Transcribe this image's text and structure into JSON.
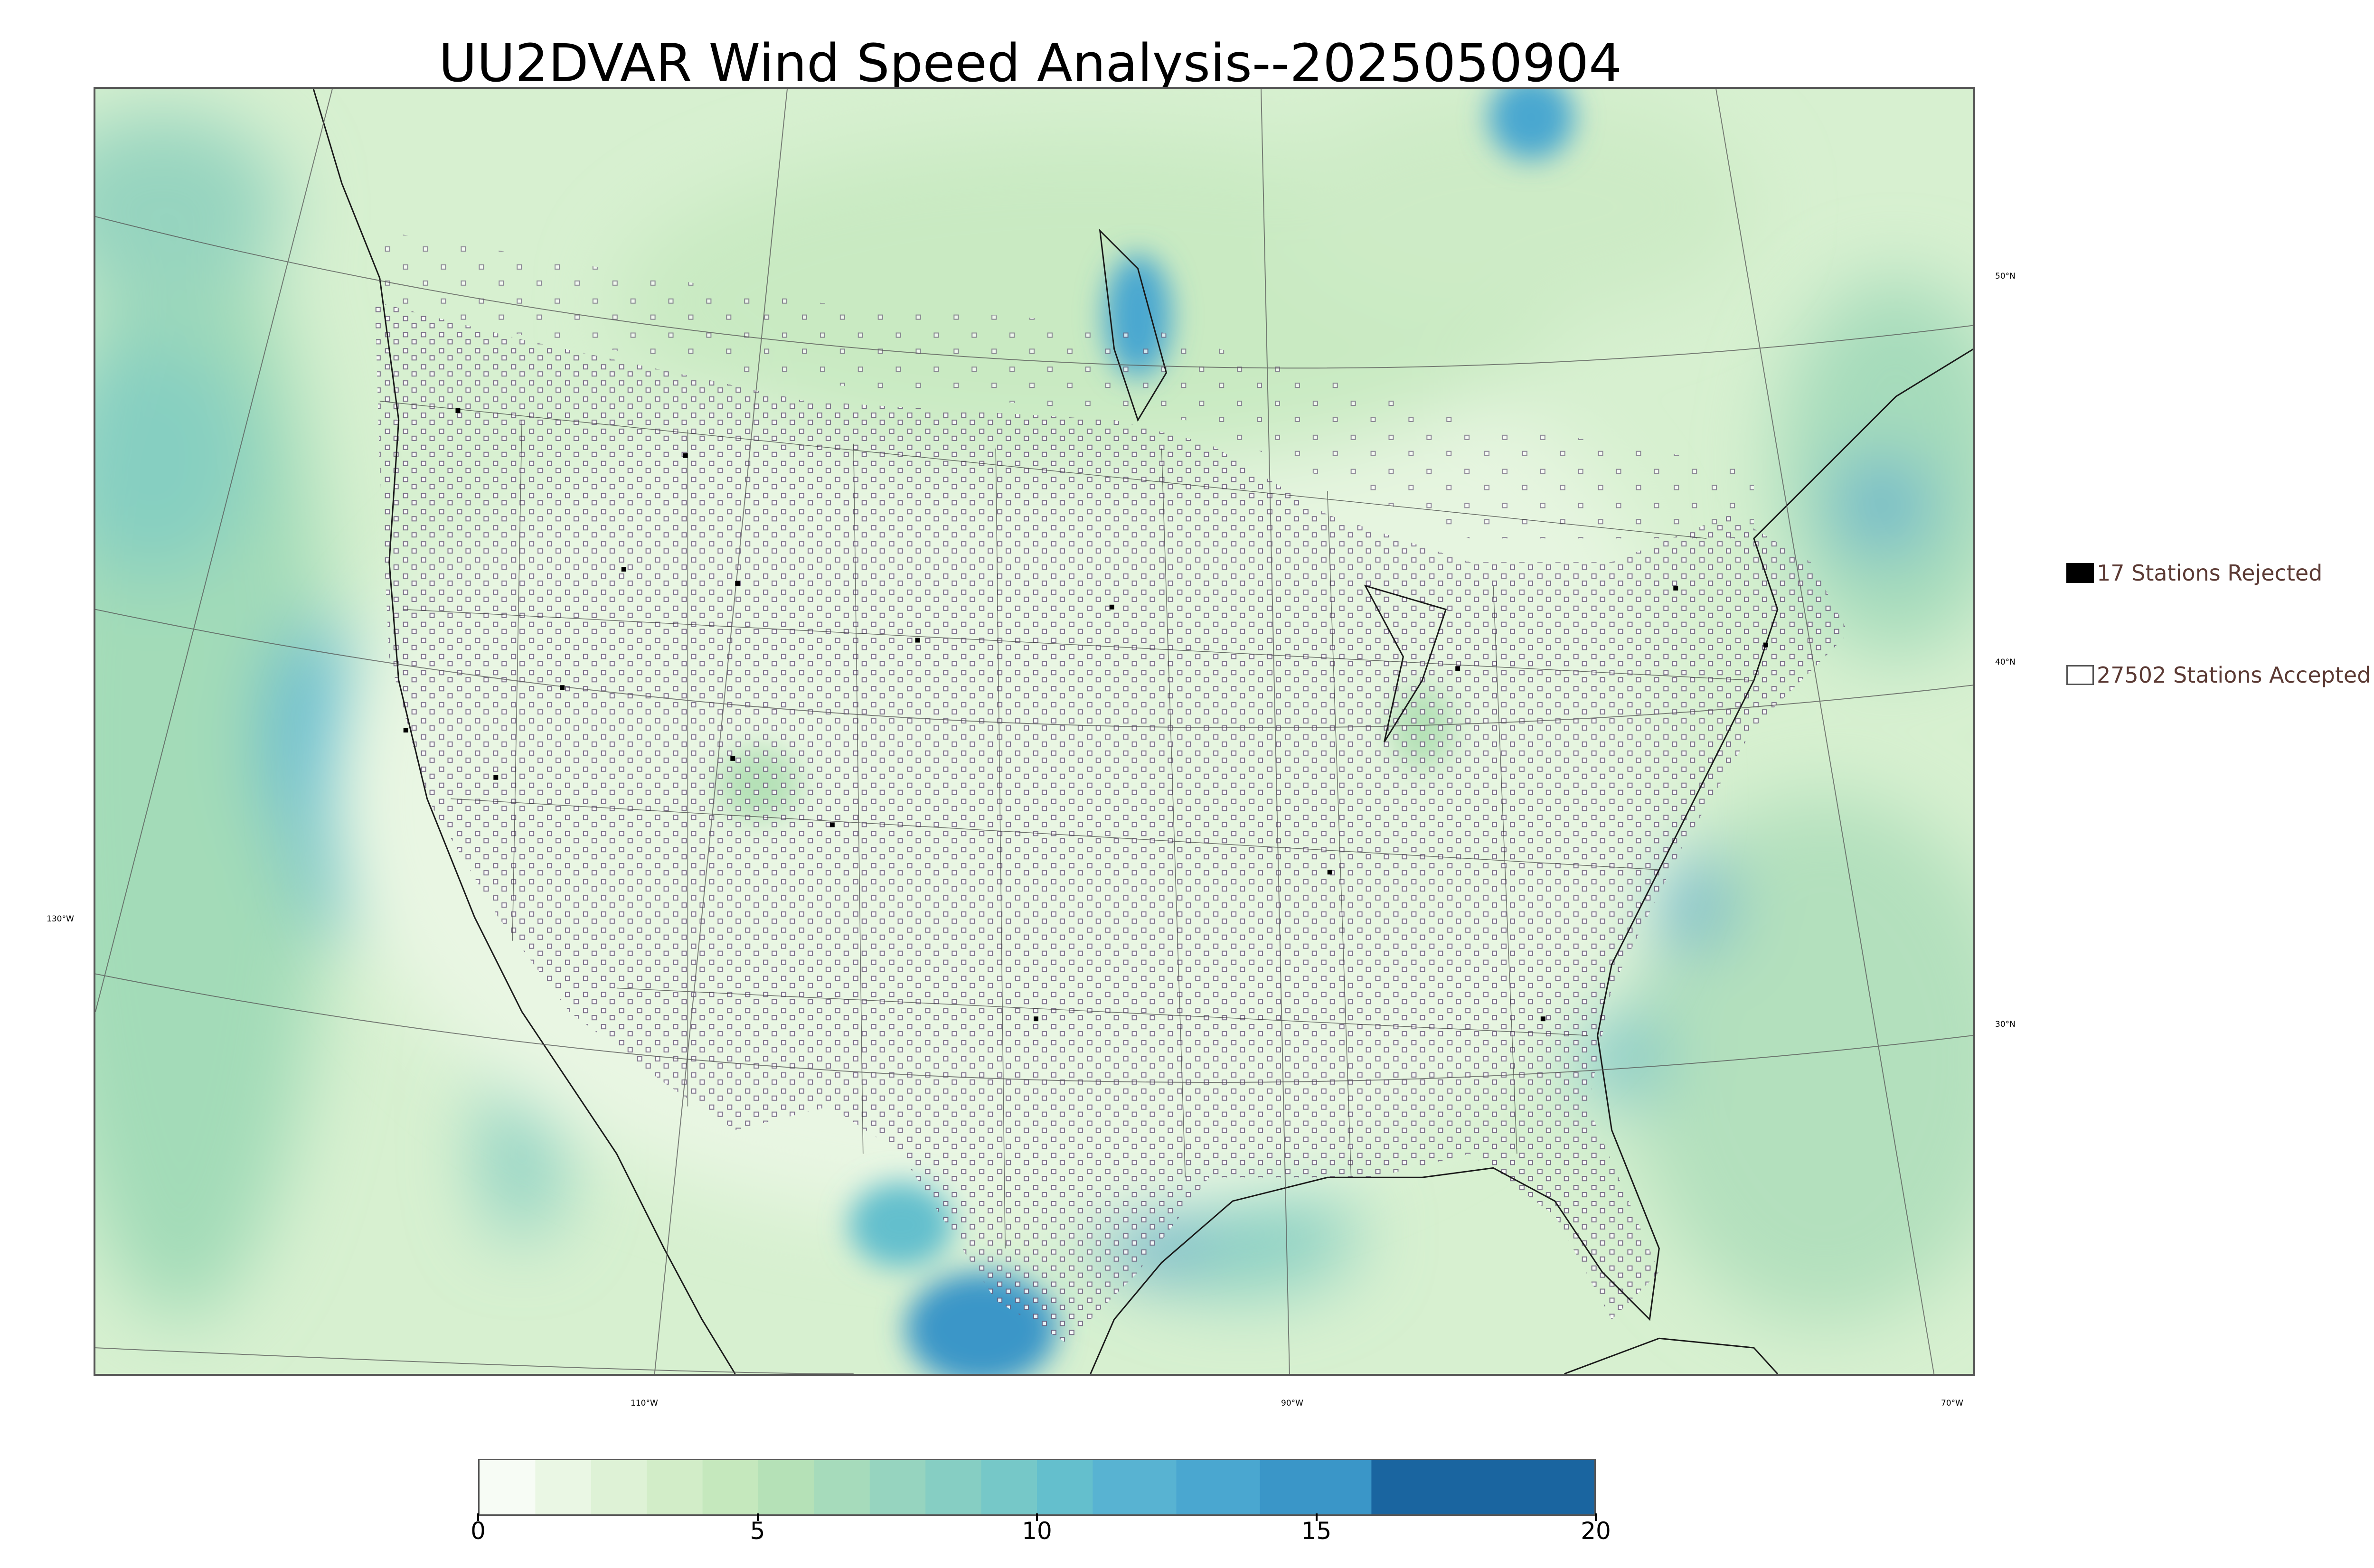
{
  "title": "UU2DVAR Wind Speed Analysis--2025050904",
  "map": {
    "description_colors": {
      "calm": "#f4fbf0",
      "light": "#d3eecb",
      "moderate": "#a8dcb5",
      "strong": "#5cb8d0",
      "very_strong": "#2c8ec0",
      "extreme": "#1663a0"
    },
    "lat_labels": [
      "50°N",
      "40°N",
      "30°N"
    ],
    "lon_labels": [
      "130°W",
      "110°W",
      "90°W",
      "70°W"
    ]
  },
  "legend": {
    "rejected_label": "17 Stations Rejected",
    "accepted_label": "27502 Stations Accepted",
    "rejected_color": "#000000",
    "accepted_color": "#ffffff"
  },
  "colorbar": {
    "ticks": [
      "0",
      "5",
      "10",
      "15",
      "20"
    ],
    "tick_values": [
      0,
      5,
      10,
      15,
      20
    ],
    "range": [
      0,
      20
    ],
    "bins": [
      {
        "from": 0,
        "to": 1,
        "color": "#f7fcf5"
      },
      {
        "from": 1,
        "to": 2,
        "color": "#eaf7e4"
      },
      {
        "from": 2,
        "to": 3,
        "color": "#def2d6"
      },
      {
        "from": 3,
        "to": 4,
        "color": "#d2edc8"
      },
      {
        "from": 4,
        "to": 5,
        "color": "#c5e8bd"
      },
      {
        "from": 5,
        "to": 6,
        "color": "#b5e1b7"
      },
      {
        "from": 6,
        "to": 7,
        "color": "#a6dbbb"
      },
      {
        "from": 7,
        "to": 8,
        "color": "#96d4bf"
      },
      {
        "from": 8,
        "to": 9,
        "color": "#86cec3"
      },
      {
        "from": 9,
        "to": 10,
        "color": "#76c8c8"
      },
      {
        "from": 10,
        "to": 11,
        "color": "#64bfcd"
      },
      {
        "from": 11,
        "to": 12.5,
        "color": "#58b3d2"
      },
      {
        "from": 12.5,
        "to": 14,
        "color": "#4aa7d0"
      },
      {
        "from": 14,
        "to": 16,
        "color": "#3a96c8"
      },
      {
        "from": 16,
        "to": 20,
        "color": "#1a65a0"
      }
    ]
  }
}
